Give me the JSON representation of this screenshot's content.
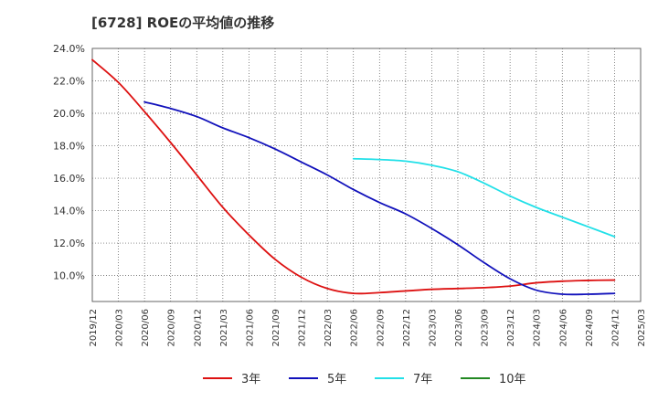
{
  "chart_data": {
    "type": "line",
    "title": "[6728]  ROEの平均値の推移",
    "xlabel": "",
    "ylabel": "",
    "ylim": [
      8.4,
      24.0
    ],
    "y_ticks": [
      "24.0%",
      "22.0%",
      "20.0%",
      "18.0%",
      "16.0%",
      "14.0%",
      "12.0%",
      "10.0%"
    ],
    "y_tick_values": [
      24,
      22,
      20,
      18,
      16,
      14,
      12,
      10
    ],
    "x_ticks": [
      "2019/12",
      "2020/03",
      "2020/06",
      "2020/09",
      "2020/12",
      "2021/03",
      "2021/06",
      "2021/09",
      "2021/12",
      "2022/03",
      "2022/06",
      "2022/09",
      "2022/12",
      "2023/03",
      "2023/06",
      "2023/09",
      "2023/12",
      "2024/03",
      "2024/06",
      "2024/09",
      "2024/12",
      "2025/03"
    ],
    "grid": true,
    "legend_position": "bottom",
    "series": [
      {
        "name": "3年",
        "color": "#dd1111",
        "values": [
          23.3,
          21.9,
          20.1,
          18.2,
          16.2,
          14.2,
          12.5,
          11.0,
          9.9,
          9.2,
          8.9,
          8.95,
          9.05,
          9.15,
          9.2,
          9.25,
          9.35,
          9.55,
          9.65,
          9.7,
          9.72,
          null
        ]
      },
      {
        "name": "5年",
        "color": "#1111bb",
        "values": [
          null,
          null,
          20.7,
          20.3,
          19.8,
          19.1,
          18.5,
          17.8,
          17.0,
          16.2,
          15.3,
          14.5,
          13.8,
          12.9,
          11.9,
          10.8,
          9.8,
          9.1,
          8.85,
          8.85,
          8.9,
          null
        ]
      },
      {
        "name": "7年",
        "color": "#22e0e8",
        "values": [
          null,
          null,
          null,
          null,
          null,
          null,
          null,
          null,
          null,
          null,
          17.2,
          17.15,
          17.05,
          16.8,
          16.4,
          15.7,
          14.9,
          14.2,
          13.6,
          13.0,
          12.4,
          null
        ]
      },
      {
        "name": "10年",
        "color": "#228822",
        "values": [
          null,
          null,
          null,
          null,
          null,
          null,
          null,
          null,
          null,
          null,
          null,
          null,
          null,
          null,
          null,
          null,
          null,
          null,
          null,
          null,
          null,
          null
        ]
      }
    ]
  }
}
